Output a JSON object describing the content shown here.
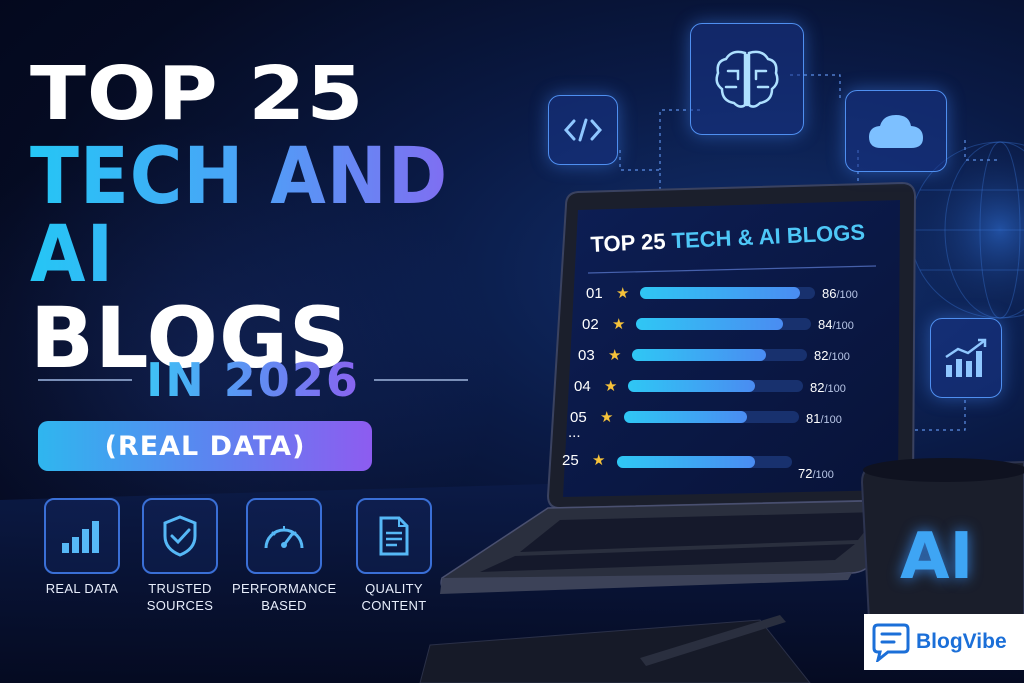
{
  "headline": {
    "line1": "TOP 25",
    "line2": "TECH AND AI",
    "line3": "BLOGS",
    "year": "IN 2026",
    "pill": "(REAL DATA)"
  },
  "features": [
    {
      "label1": "REAL DATA",
      "label2": "",
      "icon": "bar-chart-icon"
    },
    {
      "label1": "TRUSTED",
      "label2": "SOURCES",
      "icon": "shield-check-icon"
    },
    {
      "label1": "PERFORMANCE",
      "label2": "BASED",
      "icon": "speedometer-icon"
    },
    {
      "label1": "QUALITY",
      "label2": "CONTENT",
      "icon": "document-icon"
    }
  ],
  "screen": {
    "title_white": "TOP 25 ",
    "title_accent": "TECH & AI BLOGS",
    "ellipsis": "...",
    "rows": [
      {
        "rank": "01",
        "score": "86",
        "max": "/100"
      },
      {
        "rank": "02",
        "score": "84",
        "max": "/100"
      },
      {
        "rank": "03",
        "score": "82",
        "max": "/100"
      },
      {
        "rank": "04",
        "score": "82",
        "max": "/100"
      },
      {
        "rank": "05",
        "score": "81",
        "max": "/100"
      },
      {
        "rank": "25",
        "score": "72",
        "max": "/100"
      }
    ]
  },
  "mug_text": "AI",
  "brand": {
    "name": "BlogVibe",
    "icon": "chat-bubble-icon"
  },
  "floating_icons": [
    "code-icon",
    "brain-icon",
    "cloud-icon",
    "growth-chart-icon"
  ],
  "colors": {
    "accent_cyan": "#2fb6ef",
    "accent_purple": "#8d5cf0",
    "star": "#f6c23a",
    "brand_blue": "#1b6fd8"
  }
}
